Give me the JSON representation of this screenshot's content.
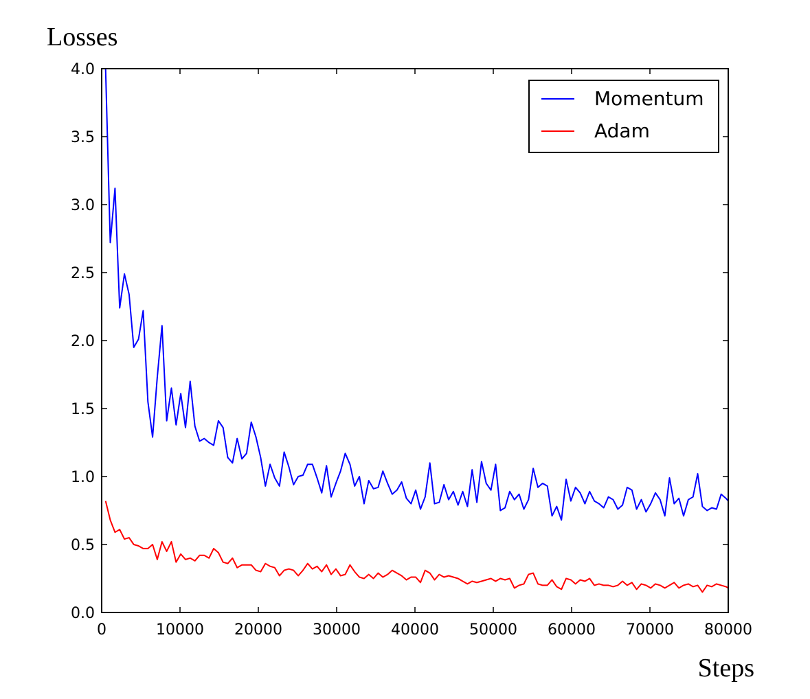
{
  "chart_data": {
    "type": "line",
    "title": "",
    "ylabel": "Losses",
    "xlabel": "Steps",
    "xlim": [
      0,
      80000
    ],
    "ylim": [
      0.0,
      4.0
    ],
    "xticks": [
      0,
      10000,
      20000,
      30000,
      40000,
      50000,
      60000,
      70000,
      80000
    ],
    "xtick_labels": [
      "0",
      "10000",
      "20000",
      "30000",
      "40000",
      "50000",
      "60000",
      "70000",
      "80000"
    ],
    "yticks": [
      0.0,
      0.5,
      1.0,
      1.5,
      2.0,
      2.5,
      3.0,
      3.5,
      4.0
    ],
    "ytick_labels": [
      "0.0",
      "0.5",
      "1.0",
      "1.5",
      "2.0",
      "2.5",
      "3.0",
      "3.5",
      "4.0"
    ],
    "grid": false,
    "legend": "top-right",
    "x": [
      500,
      1100,
      1700,
      2300,
      2900,
      3500,
      4100,
      4700,
      5300,
      5900,
      6500,
      7100,
      7700,
      8300,
      8900,
      9500,
      10100,
      10700,
      11300,
      11900,
      12500,
      13100,
      13700,
      14300,
      14900,
      15500,
      16100,
      16700,
      17300,
      17900,
      18500,
      19100,
      19700,
      20300,
      20900,
      21500,
      22100,
      22700,
      23300,
      23900,
      24500,
      25100,
      25700,
      26300,
      26900,
      27500,
      28100,
      28700,
      29300,
      29900,
      30500,
      31100,
      31700,
      32300,
      32900,
      33500,
      34100,
      34700,
      35300,
      35900,
      36500,
      37100,
      37700,
      38300,
      38900,
      39500,
      40100,
      40700,
      41300,
      41900,
      42500,
      43100,
      43700,
      44300,
      44900,
      45500,
      46100,
      46700,
      47300,
      47900,
      48500,
      49100,
      49700,
      50300,
      50900,
      51500,
      52100,
      52700,
      53300,
      53900,
      54500,
      55100,
      55700,
      56300,
      56900,
      57500,
      58100,
      58700,
      59300,
      59900,
      60500,
      61100,
      61700,
      62300,
      62900,
      63500,
      64100,
      64700,
      65300,
      65900,
      66500,
      67100,
      67700,
      68300,
      68900,
      69500,
      70100,
      70700,
      71300,
      71900,
      72500,
      73100,
      73700,
      74300,
      74900,
      75500,
      76100,
      76700,
      77300,
      77900,
      78500,
      79100,
      79700,
      80000
    ],
    "series": [
      {
        "name": "Momentum",
        "color": "#0000ff",
        "values": [
          4.0,
          2.72,
          3.12,
          2.24,
          2.49,
          2.34,
          1.95,
          2.01,
          2.22,
          1.55,
          1.29,
          1.73,
          2.11,
          1.41,
          1.65,
          1.38,
          1.61,
          1.36,
          1.7,
          1.37,
          1.26,
          1.28,
          1.25,
          1.23,
          1.41,
          1.36,
          1.14,
          1.1,
          1.28,
          1.13,
          1.17,
          1.4,
          1.29,
          1.14,
          0.93,
          1.09,
          0.99,
          0.93,
          1.18,
          1.07,
          0.94,
          1.0,
          1.01,
          1.09,
          1.09,
          0.99,
          0.88,
          1.08,
          0.85,
          0.95,
          1.04,
          1.17,
          1.09,
          0.93,
          1.0,
          0.8,
          0.97,
          0.91,
          0.92,
          1.04,
          0.95,
          0.87,
          0.9,
          0.96,
          0.84,
          0.8,
          0.9,
          0.76,
          0.85,
          1.1,
          0.8,
          0.81,
          0.94,
          0.83,
          0.89,
          0.79,
          0.89,
          0.78,
          1.05,
          0.81,
          1.11,
          0.95,
          0.9,
          1.09,
          0.75,
          0.77,
          0.89,
          0.83,
          0.87,
          0.76,
          0.83,
          1.06,
          0.92,
          0.95,
          0.93,
          0.71,
          0.78,
          0.68,
          0.98,
          0.82,
          0.92,
          0.88,
          0.8,
          0.89,
          0.82,
          0.8,
          0.77,
          0.85,
          0.83,
          0.76,
          0.79,
          0.92,
          0.9,
          0.76,
          0.83,
          0.74,
          0.8,
          0.88,
          0.83,
          0.71,
          0.99,
          0.8,
          0.84,
          0.71,
          0.83,
          0.85,
          1.02,
          0.78,
          0.75,
          0.77,
          0.76,
          0.87,
          0.84,
          0.82
        ]
      },
      {
        "name": "Adam",
        "color": "#ff0000",
        "values": [
          0.82,
          0.68,
          0.59,
          0.61,
          0.54,
          0.55,
          0.5,
          0.49,
          0.47,
          0.47,
          0.5,
          0.39,
          0.52,
          0.45,
          0.52,
          0.37,
          0.43,
          0.39,
          0.4,
          0.38,
          0.42,
          0.42,
          0.4,
          0.47,
          0.44,
          0.37,
          0.36,
          0.4,
          0.33,
          0.35,
          0.35,
          0.35,
          0.31,
          0.3,
          0.36,
          0.34,
          0.33,
          0.27,
          0.31,
          0.32,
          0.31,
          0.27,
          0.31,
          0.36,
          0.32,
          0.34,
          0.3,
          0.35,
          0.28,
          0.32,
          0.27,
          0.28,
          0.35,
          0.3,
          0.26,
          0.25,
          0.28,
          0.25,
          0.29,
          0.26,
          0.28,
          0.31,
          0.29,
          0.27,
          0.24,
          0.26,
          0.26,
          0.22,
          0.31,
          0.29,
          0.24,
          0.28,
          0.26,
          0.27,
          0.26,
          0.25,
          0.23,
          0.21,
          0.23,
          0.22,
          0.23,
          0.24,
          0.25,
          0.23,
          0.25,
          0.24,
          0.25,
          0.18,
          0.2,
          0.21,
          0.28,
          0.29,
          0.21,
          0.2,
          0.2,
          0.24,
          0.19,
          0.17,
          0.25,
          0.24,
          0.21,
          0.24,
          0.23,
          0.25,
          0.2,
          0.21,
          0.2,
          0.2,
          0.19,
          0.2,
          0.23,
          0.2,
          0.22,
          0.17,
          0.21,
          0.2,
          0.18,
          0.21,
          0.2,
          0.18,
          0.2,
          0.22,
          0.18,
          0.2,
          0.21,
          0.19,
          0.2,
          0.15,
          0.2,
          0.19,
          0.21,
          0.2,
          0.19,
          0.18
        ]
      }
    ]
  }
}
